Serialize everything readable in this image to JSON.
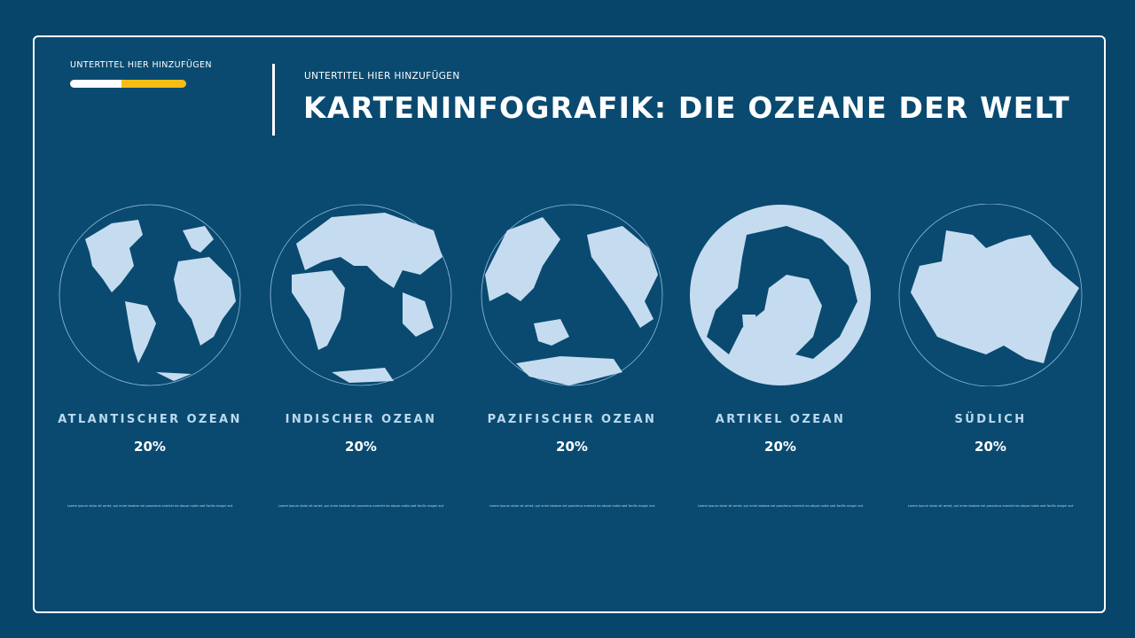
{
  "header": {
    "subtitle_left": "UNTERTITEL HIER HINZUFÜGEN",
    "subtitle_right": "UNTERTITEL HIER HINZUFÜGEN",
    "title": "KARTENINFOGRAFIK: DIE OZEANE DER WELT",
    "progress_percent": 44
  },
  "colors": {
    "background": "#0a4a70",
    "land": "#c5dcf0",
    "accent": "#f6bd16"
  },
  "oceans": [
    {
      "name": "ATLANTISCHER OZEAN",
      "percent": "20%",
      "text": "Lorem ipsum dolor sit amet, qui enim beatae vel possimus eveniet ea atque nobis sed facilis magni aut"
    },
    {
      "name": "INDISCHER OZEAN",
      "percent": "20%",
      "text": "Lorem ipsum dolor sit amet, qui enim beatae vel possimus eveniet ea atque nobis sed facilis magni aut"
    },
    {
      "name": "PAZIFISCHER OZEAN",
      "percent": "20%",
      "text": "Lorem ipsum dolor sit amet, qui enim beatae vel possimus eveniet ea atque nobis sed facilis magni aut"
    },
    {
      "name": "ARTIKEL OZEAN",
      "percent": "20%",
      "text": "Lorem ipsum dolor sit amet, qui enim beatae vel possimus eveniet ea atque nobis sed facilis magni aut"
    },
    {
      "name": "SÜDLICH",
      "percent": "20%",
      "text": "Lorem ipsum dolor sit amet, qui enim beatae vel possimus eveniet ea atque nobis sed facilis magni aut"
    }
  ]
}
